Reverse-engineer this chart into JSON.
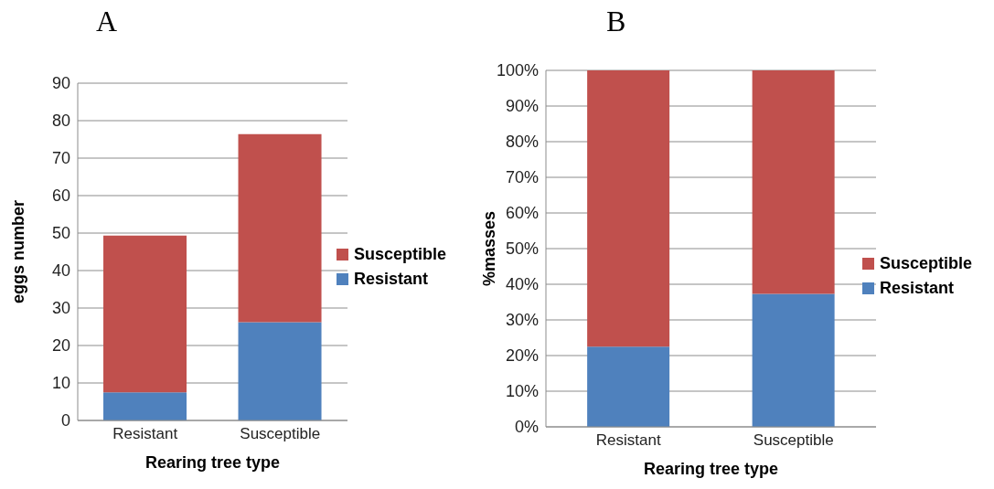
{
  "chart_data": [
    {
      "type": "bar",
      "title": "A",
      "xlabel": "Rearing tree type",
      "ylabel": "eggs number",
      "categories": [
        "Resistant",
        "Susceptible"
      ],
      "stacked": true,
      "grid": "y",
      "legend": "right",
      "ylim": [
        0,
        90
      ],
      "yticks": [
        0,
        10,
        20,
        30,
        40,
        50,
        60,
        70,
        80,
        90
      ],
      "series": [
        {
          "name": "Resistant",
          "color": "#4f81bd",
          "values": [
            7.5,
            26.2
          ]
        },
        {
          "name": "Susceptible",
          "color": "#c0504d",
          "values": [
            41.8,
            50.2
          ]
        }
      ]
    },
    {
      "type": "bar",
      "title": "B",
      "xlabel": "Rearing tree type",
      "ylabel": "%masses",
      "categories": [
        "Resistant",
        "Susceptible"
      ],
      "stacked": true,
      "grid": "y",
      "legend": "right",
      "ylim": [
        0,
        100
      ],
      "yticks": [
        {
          "value": 0,
          "label": "0%"
        },
        {
          "value": 10,
          "label": "10%"
        },
        {
          "value": 20,
          "label": "20%"
        },
        {
          "value": 30,
          "label": "30%"
        },
        {
          "value": 40,
          "label": "40%"
        },
        {
          "value": 50,
          "label": "50%"
        },
        {
          "value": 60,
          "label": "60%"
        },
        {
          "value": 70,
          "label": "70%"
        },
        {
          "value": 80,
          "label": "80%"
        },
        {
          "value": 90,
          "label": "90%"
        },
        {
          "value": 100,
          "label": "100%"
        }
      ],
      "series": [
        {
          "name": "Resistant",
          "color": "#4f81bd",
          "values": [
            22.5,
            37.3
          ]
        },
        {
          "name": "Susceptible",
          "color": "#c0504d",
          "values": [
            77.5,
            62.7
          ]
        }
      ]
    }
  ]
}
